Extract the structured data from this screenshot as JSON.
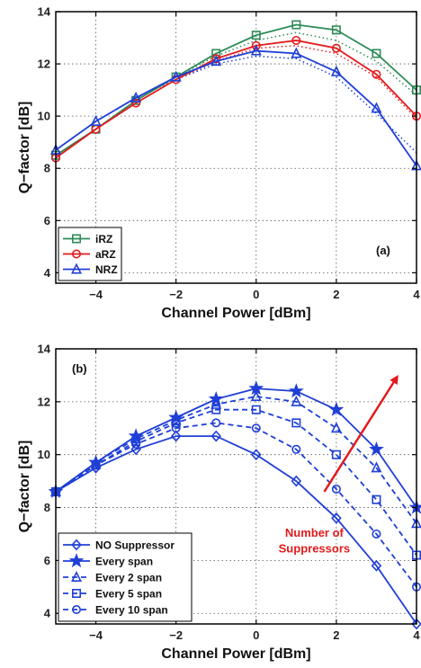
{
  "chart_data": [
    {
      "type": "line",
      "panel_label": "(a)",
      "xlabel": "Channel Power [dBm]",
      "ylabel": "Q−factor [dB]",
      "xlim": [
        -5,
        4
      ],
      "ylim": [
        3.6,
        14
      ],
      "xticks": [
        -4,
        -2,
        0,
        2,
        4
      ],
      "yticks": [
        4,
        6,
        8,
        10,
        12,
        14
      ],
      "grid": true,
      "legend_position": "bottom-left",
      "x": [
        -5,
        -4,
        -3,
        -2,
        -1,
        0,
        1,
        2,
        3,
        4
      ],
      "series": [
        {
          "name": "iRZ",
          "color": "#2e8b57",
          "marker": "square",
          "values": [
            8.5,
            9.5,
            10.6,
            11.5,
            12.4,
            13.1,
            13.5,
            13.3,
            12.4,
            11.0
          ]
        },
        {
          "name": "aRZ",
          "color": "#e31a1c",
          "marker": "circle",
          "values": [
            8.4,
            9.5,
            10.5,
            11.4,
            12.2,
            12.7,
            12.9,
            12.6,
            11.6,
            10.0
          ]
        },
        {
          "name": "NRZ",
          "color": "#1f3fd6",
          "marker": "triangle",
          "values": [
            8.7,
            9.8,
            10.7,
            11.5,
            12.1,
            12.5,
            12.4,
            11.7,
            10.3,
            8.1
          ]
        }
      ],
      "dotted_series": [
        {
          "color": "#2e8b57",
          "values": [
            8.5,
            9.5,
            10.6,
            11.5,
            12.3,
            12.9,
            13.2,
            12.9,
            12.1,
            10.8
          ]
        },
        {
          "color": "#e31a1c",
          "values": [
            8.4,
            9.5,
            10.5,
            11.4,
            12.1,
            12.6,
            12.7,
            12.4,
            11.5,
            9.9
          ]
        },
        {
          "color": "#1f3fd6",
          "values": [
            8.7,
            9.8,
            10.7,
            11.4,
            12.0,
            12.3,
            12.2,
            11.5,
            10.1,
            8.6
          ]
        }
      ]
    },
    {
      "type": "line",
      "panel_label": "(b)",
      "xlabel": "Channel Power [dBm]",
      "ylabel": "Q−factor [dB]",
      "xlim": [
        -5,
        4
      ],
      "ylim": [
        3.6,
        14
      ],
      "xticks": [
        -4,
        -2,
        0,
        2,
        4
      ],
      "yticks": [
        4,
        6,
        8,
        10,
        12,
        14
      ],
      "grid": true,
      "legend_position": "bottom-left",
      "x": [
        -5,
        -4,
        -3,
        -2,
        -1,
        0,
        1,
        2,
        3,
        4
      ],
      "series": [
        {
          "name": "NO Suppressor",
          "color": "#1f3fd6",
          "marker": "diamond",
          "dash": "solid",
          "values": [
            8.6,
            9.5,
            10.2,
            10.7,
            10.7,
            10.0,
            9.0,
            7.6,
            5.8,
            3.6
          ]
        },
        {
          "name": "Every span",
          "color": "#1f3fd6",
          "marker": "star",
          "dash": "solid",
          "values": [
            8.6,
            9.7,
            10.7,
            11.4,
            12.1,
            12.5,
            12.4,
            11.7,
            10.2,
            8.0
          ]
        },
        {
          "name": "Every 2 span",
          "color": "#1f3fd6",
          "marker": "triangle",
          "dash": "dashed",
          "values": [
            8.6,
            9.7,
            10.6,
            11.3,
            11.9,
            12.2,
            12.0,
            11.0,
            9.5,
            7.4
          ]
        },
        {
          "name": "Every 5 span",
          "color": "#1f3fd6",
          "marker": "square",
          "dash": "dashed",
          "values": [
            8.6,
            9.6,
            10.5,
            11.2,
            11.7,
            11.7,
            11.2,
            10.0,
            8.3,
            6.2
          ]
        },
        {
          "name": "Every 10 span",
          "color": "#1f3fd6",
          "marker": "circle",
          "dash": "dashed",
          "values": [
            8.6,
            9.6,
            10.4,
            11.0,
            11.2,
            11.0,
            10.2,
            8.7,
            7.0,
            5.0
          ]
        }
      ],
      "annotation": {
        "text_line1": "Number of",
        "text_line2": "Suppressors",
        "color": "#e31a1c"
      }
    }
  ]
}
